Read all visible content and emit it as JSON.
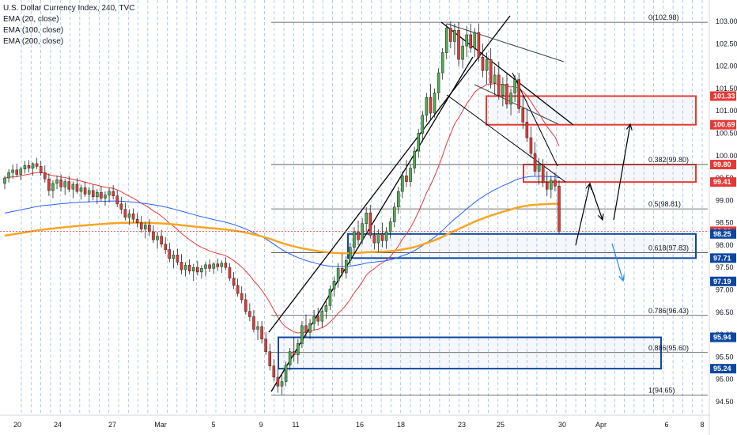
{
  "legend": {
    "symbol": "U.S. Dollar Currency Index, 240, TVC",
    "ema20": "EMA (20, close)",
    "ema100": "EMA (100, close)",
    "ema200": "EMA (200, close)"
  },
  "colors": {
    "up": "#26a69a",
    "down": "#ef5350",
    "candle_up_fill": "#4caf50",
    "candle_down_fill": "#e53935",
    "ema20": "#e53935",
    "ema100": "#2962ff",
    "ema200": "#f5a623",
    "channel": "#000000",
    "blue_box": "#0d47a1",
    "red_box": "#e53935",
    "arrow_blue": "#1e88e5",
    "grid_dash": "#6fa8dc",
    "price_line": "#e53935"
  },
  "chart_data": {
    "type": "candlestick",
    "title": "U.S. Dollar Currency Index, 240, TVC",
    "y_axis": {
      "ylim": [
        94.35,
        103.1
      ],
      "ticks": [
        "103.00",
        "102.50",
        "102.00",
        "101.50",
        "101.00",
        "100.50",
        "100.00",
        "99.50",
        "99.00",
        "98.50",
        "98.00",
        "97.50",
        "97.00",
        "96.50",
        "96.00",
        "95.50",
        "95.00",
        "94.50"
      ],
      "tick_values": [
        103.0,
        102.5,
        102.0,
        101.5,
        101.0,
        100.5,
        100.0,
        99.5,
        99.0,
        98.5,
        98.0,
        97.5,
        97.0,
        96.5,
        96.0,
        95.5,
        95.0,
        94.5
      ]
    },
    "x_axis": {
      "tick_labels": [
        "20",
        "24",
        "27",
        "Mar",
        "5",
        "9",
        "11",
        "16",
        "18",
        "23",
        "25",
        "30",
        "Apr",
        "6",
        "8"
      ]
    },
    "price_tags": [
      {
        "label": "101.33",
        "value": 101.33,
        "color": "red"
      },
      {
        "label": "100.69",
        "value": 100.69,
        "color": "red"
      },
      {
        "label": "99.80",
        "value": 99.8,
        "color": "red"
      },
      {
        "label": "99.41",
        "value": 99.41,
        "color": "red"
      },
      {
        "label": "98.31",
        "value": 98.31,
        "color": "red"
      },
      {
        "label": "98.25",
        "value": 98.25,
        "color": "blue"
      },
      {
        "label": "97.71",
        "value": 97.71,
        "color": "blue"
      },
      {
        "label": "97.19",
        "value": 97.19,
        "color": "blue"
      },
      {
        "label": "95.94",
        "value": 95.94,
        "color": "blue"
      },
      {
        "label": "95.24",
        "value": 95.24,
        "color": "blue"
      }
    ],
    "fibonacci": [
      {
        "label": "0(102.98)",
        "value": 102.98
      },
      {
        "label": "0.382(99.80)",
        "value": 99.8
      },
      {
        "label": "0.5(98.81)",
        "value": 98.81
      },
      {
        "label": "0.618(97.83)",
        "value": 97.83
      },
      {
        "label": "0.786(96.43)",
        "value": 96.43
      },
      {
        "label": "0.886(95.60)",
        "value": 95.6
      },
      {
        "label": "1(94.65)",
        "value": 94.65
      }
    ],
    "zones": [
      {
        "color": "red",
        "top": 101.33,
        "bottom": 100.69
      },
      {
        "color": "red",
        "top": 99.8,
        "bottom": 99.41
      },
      {
        "color": "blue",
        "top": 98.25,
        "bottom": 97.71
      },
      {
        "color": "blue",
        "top": 95.94,
        "bottom": 95.24
      }
    ],
    "last_price": 98.31,
    "candles": [
      [
        99.38,
        99.55,
        99.25,
        99.5
      ],
      [
        99.5,
        99.7,
        99.4,
        99.62
      ],
      [
        99.62,
        99.8,
        99.48,
        99.68
      ],
      [
        99.68,
        99.82,
        99.52,
        99.58
      ],
      [
        99.58,
        99.75,
        99.45,
        99.7
      ],
      [
        99.7,
        99.88,
        99.6,
        99.78
      ],
      [
        99.78,
        99.9,
        99.62,
        99.72
      ],
      [
        99.72,
        99.85,
        99.55,
        99.82
      ],
      [
        99.82,
        99.95,
        99.7,
        99.76
      ],
      [
        99.76,
        99.88,
        99.55,
        99.62
      ],
      [
        99.62,
        99.78,
        99.4,
        99.48
      ],
      [
        99.48,
        99.6,
        99.1,
        99.22
      ],
      [
        99.22,
        99.45,
        99.05,
        99.38
      ],
      [
        99.38,
        99.55,
        99.25,
        99.46
      ],
      [
        99.46,
        99.58,
        99.2,
        99.3
      ],
      [
        99.3,
        99.48,
        99.12,
        99.42
      ],
      [
        99.42,
        99.55,
        99.18,
        99.25
      ],
      [
        99.25,
        99.42,
        99.05,
        99.36
      ],
      [
        99.36,
        99.5,
        99.15,
        99.2
      ],
      [
        99.2,
        99.35,
        99.02,
        99.28
      ],
      [
        99.28,
        99.42,
        99.08,
        99.14
      ],
      [
        99.14,
        99.3,
        98.95,
        99.22
      ],
      [
        99.22,
        99.36,
        99.0,
        99.08
      ],
      [
        99.08,
        99.25,
        98.92,
        99.18
      ],
      [
        99.18,
        99.32,
        98.98,
        99.05
      ],
      [
        99.05,
        99.2,
        98.88,
        99.12
      ],
      [
        99.12,
        99.28,
        98.95,
        99.2
      ],
      [
        99.2,
        99.34,
        99.02,
        99.1
      ],
      [
        99.1,
        99.22,
        98.85,
        98.92
      ],
      [
        98.92,
        99.08,
        98.7,
        98.8
      ],
      [
        98.8,
        98.95,
        98.55,
        98.62
      ],
      [
        98.62,
        98.8,
        98.45,
        98.7
      ],
      [
        98.7,
        98.82,
        98.5,
        98.58
      ],
      [
        98.58,
        98.72,
        98.4,
        98.5
      ],
      [
        98.5,
        98.65,
        98.28,
        98.36
      ],
      [
        98.36,
        98.52,
        98.15,
        98.45
      ],
      [
        98.45,
        98.58,
        98.2,
        98.3
      ],
      [
        98.3,
        98.44,
        98.05,
        98.12
      ],
      [
        98.12,
        98.3,
        97.92,
        98.2
      ],
      [
        98.2,
        98.34,
        97.95,
        98.02
      ],
      [
        98.02,
        98.18,
        97.8,
        97.9
      ],
      [
        97.9,
        98.05,
        97.62,
        97.7
      ],
      [
        97.7,
        97.88,
        97.48,
        97.78
      ],
      [
        97.78,
        97.92,
        97.55,
        97.62
      ],
      [
        97.62,
        97.8,
        97.35,
        97.45
      ],
      [
        97.45,
        97.62,
        97.3,
        97.55
      ],
      [
        97.55,
        97.68,
        97.35,
        97.42
      ],
      [
        97.42,
        97.58,
        97.2,
        97.5
      ],
      [
        97.5,
        97.65,
        97.32,
        97.4
      ],
      [
        97.4,
        97.55,
        97.25,
        97.48
      ],
      [
        97.48,
        97.62,
        97.3,
        97.56
      ],
      [
        97.56,
        97.68,
        97.4,
        97.48
      ],
      [
        97.48,
        97.62,
        97.36,
        97.58
      ],
      [
        97.58,
        97.7,
        97.42,
        97.52
      ],
      [
        97.52,
        97.66,
        97.38,
        97.6
      ],
      [
        97.6,
        97.72,
        97.44,
        97.5
      ],
      [
        97.5,
        97.6,
        97.2,
        97.26
      ],
      [
        97.26,
        97.4,
        97.02,
        97.1
      ],
      [
        97.1,
        97.25,
        96.85,
        96.92
      ],
      [
        96.92,
        97.08,
        96.7,
        96.78
      ],
      [
        96.78,
        96.92,
        96.45,
        96.52
      ],
      [
        96.52,
        96.7,
        96.3,
        96.4
      ],
      [
        96.4,
        96.55,
        96.05,
        96.12
      ],
      [
        96.12,
        96.3,
        95.88,
        96.18
      ],
      [
        96.18,
        96.3,
        95.8,
        95.9
      ],
      [
        95.9,
        96.05,
        95.55,
        95.62
      ],
      [
        95.62,
        95.8,
        95.2,
        95.3
      ],
      [
        95.3,
        95.45,
        94.95,
        95.05
      ],
      [
        95.05,
        95.25,
        94.7,
        94.85
      ],
      [
        94.85,
        95.1,
        94.65,
        94.95
      ],
      [
        94.95,
        95.4,
        94.85,
        95.32
      ],
      [
        95.32,
        95.7,
        95.2,
        95.62
      ],
      [
        95.62,
        95.95,
        95.4,
        95.55
      ],
      [
        95.55,
        95.9,
        95.35,
        95.8
      ],
      [
        95.8,
        96.3,
        95.7,
        96.2
      ],
      [
        96.2,
        96.45,
        95.95,
        96.05
      ],
      [
        96.05,
        96.35,
        95.9,
        96.25
      ],
      [
        96.25,
        96.55,
        96.1,
        96.4
      ],
      [
        96.4,
        96.6,
        96.2,
        96.3
      ],
      [
        96.3,
        96.62,
        96.15,
        96.52
      ],
      [
        96.52,
        96.8,
        96.35,
        96.65
      ],
      [
        96.65,
        97.1,
        96.55,
        97.02
      ],
      [
        97.02,
        97.3,
        96.85,
        97.2
      ],
      [
        97.2,
        97.6,
        97.05,
        97.48
      ],
      [
        97.48,
        97.8,
        97.3,
        97.38
      ],
      [
        97.38,
        97.75,
        97.25,
        97.66
      ],
      [
        97.66,
        98.05,
        97.55,
        97.95
      ],
      [
        97.95,
        98.4,
        97.8,
        98.3
      ],
      [
        98.3,
        98.55,
        98.0,
        98.12
      ],
      [
        98.12,
        98.6,
        98.02,
        98.48
      ],
      [
        98.48,
        98.85,
        98.3,
        98.72
      ],
      [
        98.72,
        98.9,
        98.15,
        98.22
      ],
      [
        98.22,
        98.45,
        97.9,
        98.05
      ],
      [
        98.05,
        98.35,
        97.85,
        98.25
      ],
      [
        98.25,
        98.5,
        97.95,
        98.1
      ],
      [
        98.1,
        98.4,
        97.92,
        98.3
      ],
      [
        98.3,
        98.6,
        98.15,
        98.52
      ],
      [
        98.52,
        98.95,
        98.4,
        98.85
      ],
      [
        98.85,
        99.3,
        98.7,
        99.2
      ],
      [
        99.2,
        99.65,
        99.05,
        99.55
      ],
      [
        99.55,
        99.9,
        99.3,
        99.42
      ],
      [
        99.42,
        99.8,
        99.3,
        99.72
      ],
      [
        99.72,
        100.2,
        99.6,
        100.1
      ],
      [
        100.1,
        100.6,
        99.95,
        100.5
      ],
      [
        100.5,
        101.0,
        100.3,
        100.9
      ],
      [
        100.9,
        101.4,
        100.75,
        101.3
      ],
      [
        101.3,
        101.6,
        100.8,
        100.95
      ],
      [
        100.95,
        101.5,
        100.85,
        101.4
      ],
      [
        101.4,
        101.95,
        101.25,
        101.85
      ],
      [
        101.85,
        102.4,
        101.7,
        102.3
      ],
      [
        102.3,
        102.95,
        102.15,
        102.85
      ],
      [
        102.85,
        103.0,
        102.4,
        102.55
      ],
      [
        102.55,
        102.95,
        102.25,
        102.8
      ],
      [
        102.8,
        102.98,
        102.0,
        102.15
      ],
      [
        102.15,
        102.6,
        101.95,
        102.45
      ],
      [
        102.45,
        102.9,
        102.2,
        102.7
      ],
      [
        102.7,
        102.95,
        102.3,
        102.4
      ],
      [
        102.4,
        102.85,
        102.2,
        102.75
      ],
      [
        102.75,
        102.95,
        102.1,
        102.2
      ],
      [
        102.2,
        102.5,
        101.75,
        101.9
      ],
      [
        101.9,
        102.3,
        101.6,
        102.15
      ],
      [
        102.15,
        102.4,
        101.5,
        101.62
      ],
      [
        101.62,
        102.0,
        101.35,
        101.8
      ],
      [
        101.8,
        102.1,
        101.25,
        101.35
      ],
      [
        101.35,
        101.75,
        101.1,
        101.6
      ],
      [
        101.6,
        101.85,
        101.05,
        101.15
      ],
      [
        101.15,
        101.5,
        100.9,
        101.4
      ],
      [
        101.4,
        101.8,
        101.2,
        101.7
      ],
      [
        101.7,
        101.85,
        100.95,
        101.05
      ],
      [
        101.05,
        101.35,
        100.6,
        100.75
      ],
      [
        100.75,
        101.05,
        100.3,
        100.4
      ],
      [
        100.4,
        100.65,
        99.95,
        100.05
      ],
      [
        100.05,
        100.3,
        99.55,
        99.65
      ],
      [
        99.65,
        99.95,
        99.35,
        99.8
      ],
      [
        99.8,
        99.92,
        99.3,
        99.4
      ],
      [
        99.4,
        99.65,
        99.1,
        99.25
      ],
      [
        99.25,
        99.55,
        99.05,
        99.45
      ],
      [
        99.45,
        99.62,
        99.2,
        99.32
      ],
      [
        99.32,
        99.45,
        98.25,
        98.31
      ]
    ]
  }
}
